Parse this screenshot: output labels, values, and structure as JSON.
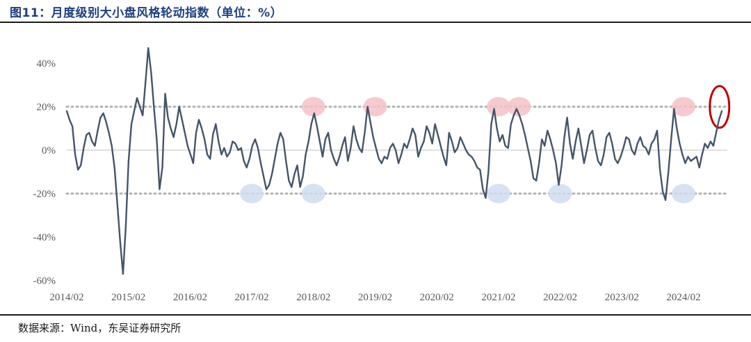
{
  "title": "图11：月度级别大小盘风格轮动指数（单位：%）",
  "source": "数据来源：Wind，东吴证券研究所",
  "colors": {
    "line": "#44546a",
    "dotted": "#b4b4b4",
    "pink": "#f4c2c8",
    "blue": "#cfdcef",
    "red": "#c00000",
    "title": "#1f3f7f"
  },
  "chart_data": {
    "type": "line",
    "title": "",
    "xlabel": "",
    "ylabel": "",
    "ylim": [
      -60,
      45
    ],
    "y_ticks": [
      "40%",
      "20%",
      "0%",
      "-20%",
      "-40%",
      "-60%"
    ],
    "y_tick_values": [
      40,
      20,
      0,
      -20,
      -40,
      -60
    ],
    "x_ticks": [
      "2014/02",
      "2015/02",
      "2016/02",
      "2017/02",
      "2018/02",
      "2019/02",
      "2020/02",
      "2021/02",
      "2022/02",
      "2023/02",
      "2024/02"
    ],
    "reference_lines": [
      20,
      -20
    ],
    "grid": false,
    "legend": "none",
    "series": [
      {
        "values": [
          18,
          14,
          11,
          -2,
          -9,
          -7,
          1,
          7,
          8,
          4,
          2,
          9,
          15,
          17,
          13,
          8,
          2,
          -8,
          -25,
          -42,
          -57,
          -35,
          -5,
          12,
          18,
          24,
          20,
          16,
          31,
          47,
          36,
          20,
          5,
          -18,
          -8,
          26,
          15,
          10,
          6,
          12,
          20,
          14,
          8,
          2,
          -2,
          -6,
          8,
          14,
          10,
          5,
          -2,
          -4,
          7,
          12,
          4,
          -2,
          1,
          -3,
          -1,
          4,
          3,
          0,
          1,
          -5,
          -8,
          -4,
          2,
          5,
          1,
          -6,
          -12,
          -18,
          -16,
          -11,
          -4,
          3,
          8,
          5,
          -5,
          -14,
          -17,
          -11,
          -7,
          -17,
          -12,
          -2,
          4,
          12,
          17,
          11,
          4,
          -3,
          5,
          8,
          0,
          -4,
          -7,
          -3,
          2,
          6,
          -5,
          1,
          11,
          5,
          1,
          -1,
          8,
          20,
          13,
          6,
          1,
          -4,
          -6,
          -3,
          -4,
          1,
          3,
          0,
          -6,
          -2,
          3,
          1,
          5,
          10,
          7,
          -3,
          1,
          4,
          11,
          8,
          3,
          12,
          7,
          2,
          -3,
          -7,
          8,
          4,
          -1,
          1,
          6,
          3,
          0,
          -2,
          -3,
          -5,
          -8,
          -9,
          -18,
          -22,
          -10,
          12,
          19,
          10,
          4,
          7,
          2,
          1,
          12,
          16,
          19,
          16,
          12,
          7,
          1,
          -5,
          -13,
          -14,
          -6,
          5,
          2,
          9,
          5,
          0,
          -6,
          -16,
          -7,
          6,
          15,
          3,
          -4,
          4,
          10,
          2,
          -6,
          0,
          7,
          9,
          1,
          -5,
          -7,
          -2,
          6,
          8,
          3,
          -4,
          -6,
          -3,
          1,
          6,
          5,
          0,
          -2,
          3,
          6,
          2,
          1,
          -2,
          3,
          5,
          9,
          -9,
          -19,
          -23,
          -10,
          5,
          19,
          10,
          3,
          -2,
          -6,
          -3,
          -5,
          -4,
          -3,
          -8,
          -2,
          3,
          1,
          4,
          2,
          8,
          14,
          18
        ]
      }
    ],
    "highlights": [
      {
        "kind": "peak",
        "x": "2018/02",
        "y": 20
      },
      {
        "kind": "peak",
        "x": "2019/02",
        "y": 20
      },
      {
        "kind": "peak",
        "x": "2021/02",
        "y": 20
      },
      {
        "kind": "peak",
        "x": "2021/06",
        "y": 20
      },
      {
        "kind": "peak",
        "x": "2024/02",
        "y": 20
      },
      {
        "kind": "trough",
        "x": "2017/02",
        "y": -20
      },
      {
        "kind": "trough",
        "x": "2018/02",
        "y": -20
      },
      {
        "kind": "trough",
        "x": "2021/02",
        "y": -20
      },
      {
        "kind": "trough",
        "x": "2022/02",
        "y": -20
      },
      {
        "kind": "trough",
        "x": "2024/02",
        "y": -20
      },
      {
        "kind": "latest",
        "x": "2024/09",
        "y": 18
      }
    ]
  }
}
